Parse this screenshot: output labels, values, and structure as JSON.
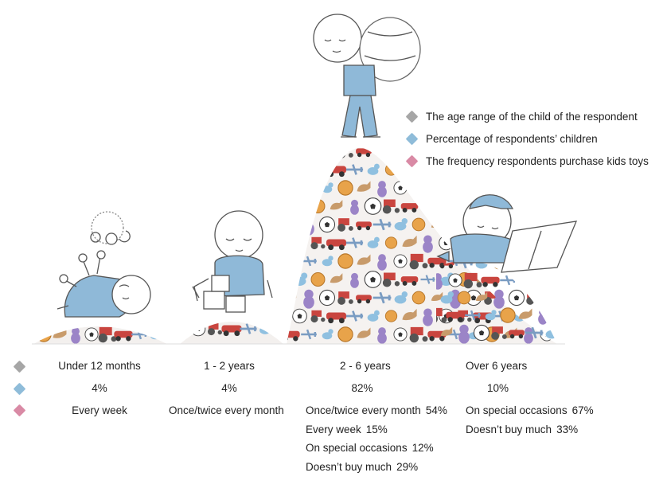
{
  "chart_data": {
    "type": "bar",
    "categories": [
      "Under 12 months",
      "1 - 2 years",
      "2 - 6 years",
      "Over 6 years"
    ],
    "series": [
      {
        "name": "Percentage of respondents’ children",
        "values": [
          4,
          4,
          82,
          10
        ],
        "labels": [
          "4%",
          "4%",
          "82%",
          "10%"
        ]
      }
    ],
    "frequency": [
      [
        {
          "label": "Every week",
          "value": ""
        }
      ],
      [
        {
          "label": "Once/twice every month",
          "value": ""
        }
      ],
      [
        {
          "label": "Once/twice every month",
          "value": "54%"
        },
        {
          "label": "Every week",
          "value": "15%"
        },
        {
          "label": "On special occasions",
          "value": "12%"
        },
        {
          "label": "Doesn’t buy much",
          "value": "29%"
        }
      ],
      [
        {
          "label": "On special occasions",
          "value": "67%"
        },
        {
          "label": "Doesn’t buy much",
          "value": "33%"
        }
      ]
    ],
    "legend": [
      {
        "label": "The age range of the child of the respondent",
        "color": "#a6a6a6"
      },
      {
        "label": "Percentage of respondents’ children",
        "color": "#8fbcd9"
      },
      {
        "label": "The frequency respondents purchase kids toys",
        "color": "#d98aa5"
      }
    ],
    "legend_position": "right"
  }
}
